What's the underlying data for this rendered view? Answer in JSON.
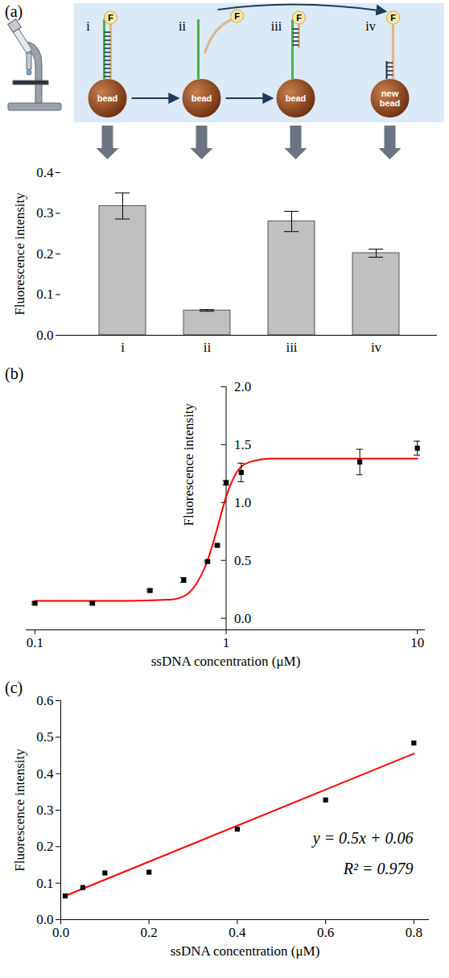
{
  "chart_data": [
    {
      "panel": "(a)",
      "type": "bar",
      "schematic": {
        "stages": [
          "i",
          "ii",
          "iii",
          "iv"
        ],
        "beads": [
          "bead",
          "bead",
          "bead",
          "new bead"
        ],
        "fluorophore": "F"
      },
      "categories": [
        "i",
        "ii",
        "iii",
        "iv"
      ],
      "values": [
        0.318,
        0.061,
        0.28,
        0.202
      ],
      "errors": [
        0.032,
        0.002,
        0.025,
        0.01
      ],
      "color": "#c0c0c0",
      "y_label": "Fluorescence intensity",
      "ylim": [
        0,
        0.4
      ],
      "yticks": [
        {
          "value": 0,
          "label": "0.0"
        },
        0.1,
        0.2,
        0.3,
        0.4
      ]
    },
    {
      "panel": "(b)",
      "type": "scatter",
      "log": "x",
      "x_label": "ssDNA concentration (μM)",
      "y_label": "Fluorescence intensity",
      "xlim": [
        0.09,
        11
      ],
      "xticks": [
        0.1,
        1,
        10
      ],
      "ylim": [
        -0.1,
        2.0
      ],
      "yticks": [
        {
          "value": 0,
          "label": "0.0"
        },
        0.5,
        {
          "value": 1,
          "label": "1.0"
        },
        1.5,
        {
          "value": 2,
          "label": "2.0"
        }
      ],
      "series": [
        {
          "type": "scatter",
          "color": "#000000",
          "marker": "square",
          "x": [
            0.1,
            0.2,
            0.4,
            0.6,
            0.8,
            0.9,
            1,
            1.2,
            5,
            10
          ],
          "values": [
            0.13,
            0.13,
            0.24,
            0.33,
            0.49,
            0.63,
            1.17,
            1.26,
            1.35,
            1.47
          ],
          "errors": [
            0.01,
            0.01,
            0.01,
            0.02,
            0.01,
            0.01,
            0.02,
            0.08,
            0.11,
            0.06
          ]
        },
        {
          "type": "line",
          "color": "#ff0000",
          "line_style": "solid",
          "x": [
            0.1,
            0.3,
            0.5,
            0.6,
            0.7,
            0.8,
            0.9,
            1.0,
            1.1,
            1.2,
            1.4,
            1.7,
            3,
            10
          ],
          "values": [
            0.15,
            0.15,
            0.16,
            0.19,
            0.3,
            0.5,
            0.78,
            1.05,
            1.22,
            1.31,
            1.36,
            1.38,
            1.38,
            1.38
          ]
        }
      ]
    },
    {
      "panel": "(c)",
      "type": "scatter",
      "x_label": "ssDNA concentration (μM)",
      "y_label": "Fluorescence intensity",
      "xlim": [
        0,
        0.835
      ],
      "xticks": [
        {
          "value": 0,
          "label": "0.0"
        },
        0.2,
        0.4,
        0.6,
        0.8
      ],
      "ylim": [
        0,
        0.6
      ],
      "yticks": [
        {
          "value": 0,
          "label": "0.0"
        },
        0.1,
        0.2,
        0.3,
        0.4,
        0.5,
        0.6
      ],
      "annotations": [
        "y = 0.5x + 0.06",
        "R² = 0.979"
      ],
      "series": [
        {
          "type": "scatter",
          "color": "#000000",
          "marker": "square",
          "x": [
            0.01,
            0.05,
            0.1,
            0.2,
            0.4,
            0.6,
            0.8
          ],
          "values": [
            0.065,
            0.088,
            0.128,
            0.13,
            0.248,
            0.328,
            0.484
          ]
        },
        {
          "type": "line",
          "color": "#ff0000",
          "line_style": "solid",
          "x": [
            0.01,
            0.8
          ],
          "values": [
            0.065,
            0.455
          ]
        }
      ]
    }
  ]
}
